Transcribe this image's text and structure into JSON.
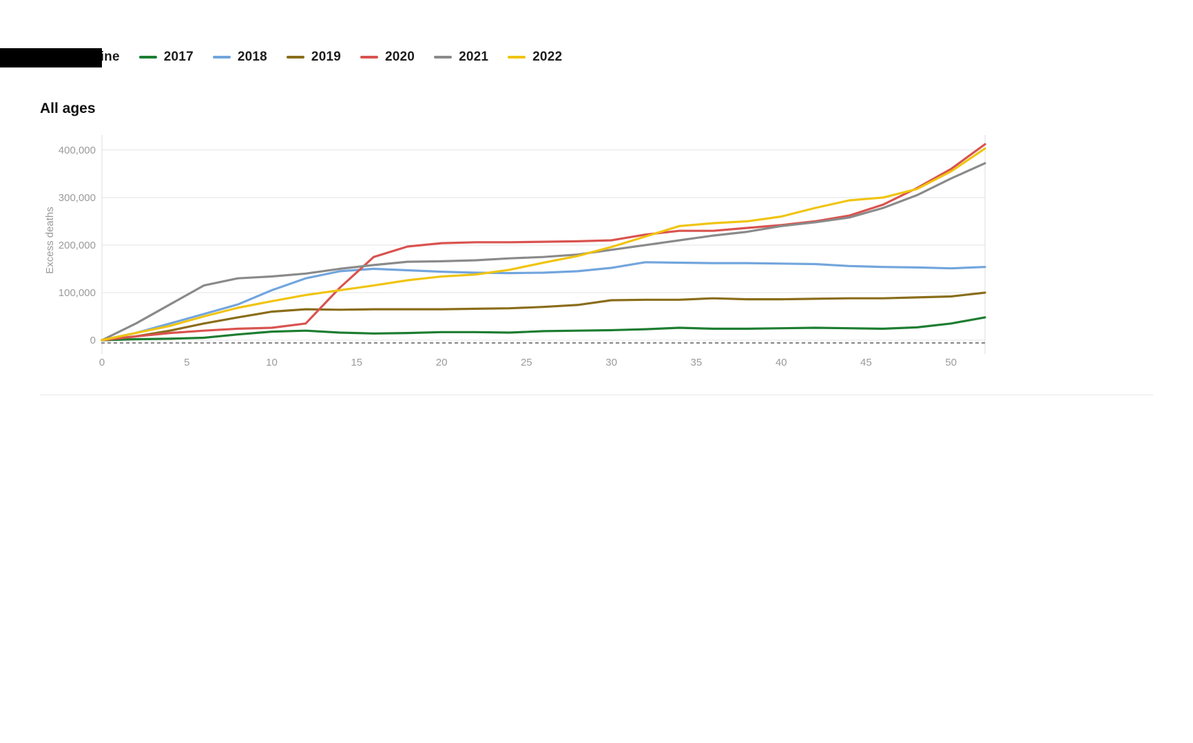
{
  "page": {
    "heading": "All ages"
  },
  "chart_data": {
    "type": "line",
    "title": "All ages",
    "xlabel": "",
    "ylabel": "Excess deaths",
    "xlim": [
      0,
      52
    ],
    "ylim": [
      0,
      420000
    ],
    "xticks": [
      0,
      5,
      10,
      15,
      20,
      25,
      30,
      35,
      40,
      45,
      50
    ],
    "yticks": [
      0,
      100000,
      200000,
      300000,
      400000
    ],
    "grid": "horizontal",
    "legend_position": "top-left",
    "x": [
      0,
      2,
      4,
      6,
      8,
      10,
      12,
      14,
      16,
      18,
      20,
      22,
      24,
      26,
      28,
      30,
      32,
      34,
      36,
      38,
      40,
      42,
      44,
      46,
      48,
      50,
      52
    ],
    "series": [
      {
        "name": "Baseline",
        "color": "#8f8f8f",
        "dash": true,
        "values": [
          0,
          0,
          0,
          0,
          0,
          0,
          0,
          0,
          0,
          0,
          0,
          0,
          0,
          0,
          0,
          0,
          0,
          0,
          0,
          0,
          0,
          0,
          0,
          0,
          0,
          0,
          0
        ]
      },
      {
        "name": "2017",
        "color": "#1d7d31",
        "dash": false,
        "values": [
          0,
          2000,
          3000,
          5000,
          12000,
          18000,
          20000,
          16000,
          14000,
          15000,
          17000,
          17000,
          16000,
          19000,
          20000,
          21000,
          23000,
          26000,
          24000,
          24000,
          25000,
          26000,
          25000,
          24000,
          27000,
          35000,
          48000
        ]
      },
      {
        "name": "2018",
        "color": "#72a5dd",
        "dash": false,
        "values": [
          0,
          15000,
          35000,
          55000,
          75000,
          105000,
          130000,
          145000,
          150000,
          147000,
          144000,
          142000,
          141000,
          142000,
          145000,
          152000,
          164000,
          163000,
          162000,
          162000,
          161000,
          160000,
          156000,
          154000,
          153000,
          151000,
          154000
        ]
      },
      {
        "name": "2019",
        "color": "#8a6d1a",
        "dash": false,
        "values": [
          0,
          8000,
          20000,
          35000,
          48000,
          60000,
          65000,
          64000,
          65000,
          65000,
          65000,
          66000,
          67000,
          70000,
          74000,
          84000,
          85000,
          85000,
          88000,
          86000,
          86000,
          87000,
          88000,
          88000,
          90000,
          92000,
          100000
        ]
      },
      {
        "name": "2020",
        "color": "#d9534f",
        "dash": false,
        "values": [
          0,
          8000,
          15000,
          20000,
          24000,
          26000,
          35000,
          110000,
          175000,
          197000,
          204000,
          206000,
          206000,
          207000,
          208000,
          210000,
          222000,
          230000,
          230000,
          236000,
          242000,
          250000,
          262000,
          285000,
          320000,
          360000,
          412000
        ]
      },
      {
        "name": "2021",
        "color": "#8a8a8a",
        "dash": false,
        "values": [
          0,
          35000,
          75000,
          115000,
          130000,
          134000,
          140000,
          150000,
          158000,
          165000,
          166000,
          168000,
          172000,
          175000,
          180000,
          190000,
          200000,
          210000,
          220000,
          228000,
          240000,
          248000,
          258000,
          278000,
          305000,
          340000,
          372000
        ]
      },
      {
        "name": "2022",
        "color": "#f0c40f",
        "dash": false,
        "values": [
          0,
          15000,
          30000,
          50000,
          68000,
          82000,
          95000,
          105000,
          115000,
          126000,
          134000,
          138000,
          148000,
          163000,
          177000,
          196000,
          218000,
          240000,
          246000,
          250000,
          260000,
          278000,
          294000,
          300000,
          318000,
          355000,
          403000
        ]
      }
    ]
  }
}
